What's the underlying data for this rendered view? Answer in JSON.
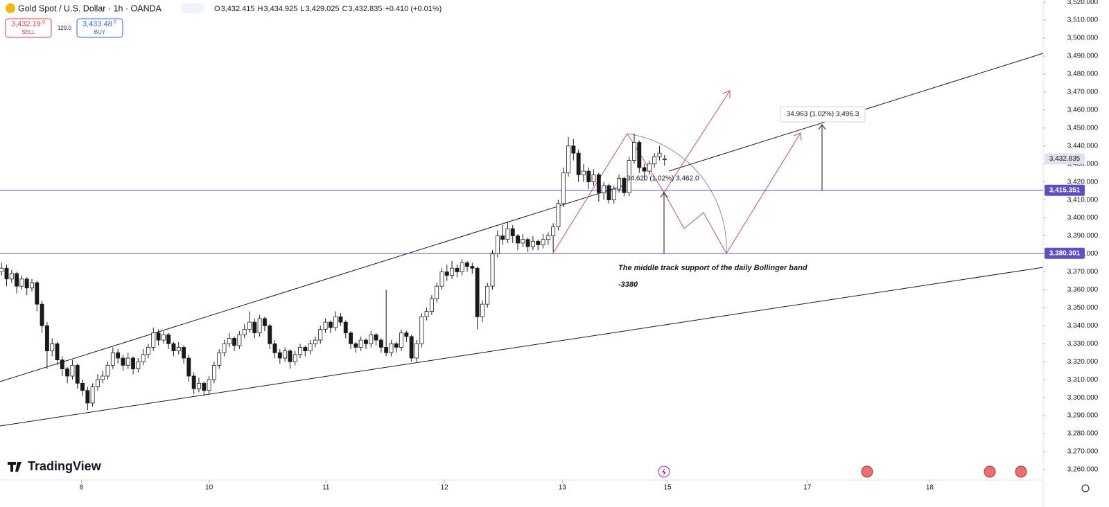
{
  "chart_data": {
    "type": "candlestick",
    "title": "Gold Spot / U.S. Dollar · 1h · OANDA",
    "ohlc_header": [
      {
        "label": "O",
        "value": "3,432.415"
      },
      {
        "label": "H",
        "value": "3,434.925"
      },
      {
        "label": "L",
        "value": "3,429.025"
      },
      {
        "label": "C",
        "value": "3,432.835"
      }
    ],
    "change": "+0.410 (+0.01%)",
    "sell": {
      "price": "3,432.19",
      "fraction": "0",
      "label": "SELL"
    },
    "spread": "129.0",
    "buy": {
      "price": "3,433.48",
      "fraction": "0",
      "label": "BUY"
    },
    "up_color": "#ffffff",
    "down_color": "#1a1a1a",
    "outline_color": "#1a1a1a",
    "xlim": [
      -0.3,
      205.8
    ],
    "xticks": [
      {
        "value": 15.8,
        "label": "8"
      },
      {
        "value": 41,
        "label": "10"
      },
      {
        "value": 64.1,
        "label": "11"
      },
      {
        "value": 87.5,
        "label": "12"
      },
      {
        "value": 110.8,
        "label": "13"
      },
      {
        "value": 131.6,
        "label": "15"
      },
      {
        "value": 159.2,
        "label": "17"
      },
      {
        "value": 183.4,
        "label": "18"
      }
    ],
    "ylim": [
      3254.2,
      3521.2
    ],
    "yticks": [
      {
        "value": 3520,
        "label": "3,520.000"
      },
      {
        "value": 3510,
        "label": "3,510.000"
      },
      {
        "value": 3500,
        "label": "3,500.000"
      },
      {
        "value": 3490,
        "label": "3,490.000"
      },
      {
        "value": 3480,
        "label": "3,480.000"
      },
      {
        "value": 3470,
        "label": "3,470.000"
      },
      {
        "value": 3460,
        "label": "3,460.000"
      },
      {
        "value": 3450,
        "label": "3,450.000"
      },
      {
        "value": 3440,
        "label": "3,440.000"
      },
      {
        "value": 3430,
        "label": "3,430.000"
      },
      {
        "value": 3420,
        "label": "3,420.000"
      },
      {
        "value": 3410,
        "label": "3,410.000"
      },
      {
        "value": 3400,
        "label": "3,400.000"
      },
      {
        "value": 3390,
        "label": "3,390.000"
      },
      {
        "value": 3380,
        "label": "3,380.000"
      },
      {
        "value": 3370,
        "label": "3,370.000"
      },
      {
        "value": 3360,
        "label": "3,360.000"
      },
      {
        "value": 3350,
        "label": "3,350.000"
      },
      {
        "value": 3340,
        "label": "3,340.000"
      },
      {
        "value": 3330,
        "label": "3,330.000"
      },
      {
        "value": 3320,
        "label": "3,320.000"
      },
      {
        "value": 3310,
        "label": "3,310.000"
      },
      {
        "value": 3300,
        "label": "3,300.000"
      },
      {
        "value": 3290,
        "label": "3,290.000"
      },
      {
        "value": 3280,
        "label": "3,280.000"
      },
      {
        "value": 3270,
        "label": "3,270.000"
      },
      {
        "value": 3260,
        "label": "3,260.000"
      }
    ],
    "current_price": {
      "value": 3432.835,
      "label": "3,432.835"
    },
    "price_lines": [
      {
        "value": 3415.351,
        "label": "3,415.351",
        "color": "#5b4fc7"
      },
      {
        "value": 3380.301,
        "label": "3,380.301",
        "color": "#5b4fc7"
      }
    ],
    "annotations": {
      "upper_measure": "34.963 (1.02%) 3,496.3",
      "lower_measure": "34.620 (1.02%) 3,462.0",
      "note": "The middle track support of the daily Bollinger band",
      "note_level": "-3380"
    },
    "brand": "TradingView",
    "candles": [
      [
        3370,
        3375,
        3368,
        3372
      ],
      [
        3372,
        3374,
        3362,
        3366
      ],
      [
        3366,
        3371,
        3364,
        3369
      ],
      [
        3369,
        3370,
        3358,
        3362
      ],
      [
        3362,
        3368,
        3360,
        3366
      ],
      [
        3366,
        3367,
        3357,
        3361
      ],
      [
        3361,
        3366,
        3359,
        3364
      ],
      [
        3364,
        3365,
        3348,
        3352
      ],
      [
        3352,
        3354,
        3336,
        3340
      ],
      [
        3340,
        3342,
        3316,
        3326
      ],
      [
        3326,
        3333,
        3323,
        3330
      ],
      [
        3330,
        3331,
        3318,
        3321
      ],
      [
        3321,
        3323,
        3312,
        3316
      ],
      [
        3316,
        3317,
        3308,
        3312
      ],
      [
        3312,
        3321,
        3310,
        3318
      ],
      [
        3318,
        3319,
        3305,
        3308
      ],
      [
        3308,
        3310,
        3301,
        3304
      ],
      [
        3304,
        3306,
        3293,
        3297
      ],
      [
        3297,
        3308,
        3295,
        3306
      ],
      [
        3306,
        3313,
        3304,
        3310
      ],
      [
        3310,
        3315,
        3308,
        3312
      ],
      [
        3312,
        3320,
        3310,
        3318
      ],
      [
        3318,
        3328,
        3316,
        3325
      ],
      [
        3325,
        3327,
        3319,
        3322
      ],
      [
        3322,
        3324,
        3315,
        3318
      ],
      [
        3318,
        3325,
        3316,
        3322
      ],
      [
        3322,
        3323,
        3313,
        3316
      ],
      [
        3316,
        3322,
        3314,
        3320
      ],
      [
        3320,
        3327,
        3318,
        3324
      ],
      [
        3324,
        3330,
        3322,
        3328
      ],
      [
        3328,
        3339,
        3326,
        3336
      ],
      [
        3336,
        3338,
        3329,
        3332
      ],
      [
        3332,
        3337,
        3330,
        3335
      ],
      [
        3335,
        3336,
        3327,
        3330
      ],
      [
        3330,
        3331,
        3323,
        3326
      ],
      [
        3326,
        3331,
        3324,
        3328
      ],
      [
        3328,
        3329,
        3319,
        3322
      ],
      [
        3322,
        3324,
        3309,
        3312
      ],
      [
        3312,
        3314,
        3302,
        3305
      ],
      [
        3305,
        3311,
        3303,
        3308
      ],
      [
        3308,
        3309,
        3301,
        3304
      ],
      [
        3304,
        3312,
        3302,
        3310
      ],
      [
        3310,
        3320,
        3308,
        3318
      ],
      [
        3318,
        3327,
        3316,
        3325
      ],
      [
        3325,
        3332,
        3323,
        3330
      ],
      [
        3330,
        3336,
        3328,
        3333
      ],
      [
        3333,
        3334,
        3326,
        3329
      ],
      [
        3329,
        3337,
        3327,
        3335
      ],
      [
        3335,
        3341,
        3333,
        3338
      ],
      [
        3338,
        3348,
        3336,
        3342
      ],
      [
        3342,
        3344,
        3333,
        3336
      ],
      [
        3336,
        3346,
        3334,
        3344
      ],
      [
        3344,
        3345,
        3337,
        3340
      ],
      [
        3340,
        3341,
        3327,
        3330
      ],
      [
        3330,
        3332,
        3322,
        3325
      ],
      [
        3325,
        3327,
        3319,
        3322
      ],
      [
        3322,
        3328,
        3320,
        3326
      ],
      [
        3326,
        3327,
        3316,
        3320
      ],
      [
        3320,
        3326,
        3318,
        3324
      ],
      [
        3324,
        3330,
        3322,
        3328
      ],
      [
        3328,
        3329,
        3323,
        3326
      ],
      [
        3326,
        3332,
        3324,
        3330
      ],
      [
        3330,
        3334,
        3328,
        3332
      ],
      [
        3332,
        3340,
        3330,
        3338
      ],
      [
        3338,
        3344,
        3336,
        3342
      ],
      [
        3342,
        3343,
        3336,
        3339
      ],
      [
        3339,
        3348,
        3337,
        3345
      ],
      [
        3345,
        3347,
        3340,
        3342
      ],
      [
        3342,
        3343,
        3333,
        3336
      ],
      [
        3336,
        3337,
        3327,
        3330
      ],
      [
        3330,
        3331,
        3325,
        3328
      ],
      [
        3328,
        3334,
        3326,
        3332
      ],
      [
        3332,
        3333,
        3327,
        3330
      ],
      [
        3330,
        3337,
        3328,
        3335
      ],
      [
        3335,
        3336,
        3329,
        3332
      ],
      [
        3332,
        3333,
        3325,
        3328
      ],
      [
        3328,
        3360,
        3323,
        3325
      ],
      [
        3325,
        3332,
        3323,
        3330
      ],
      [
        3330,
        3331,
        3325,
        3328
      ],
      [
        3328,
        3338,
        3326,
        3336
      ],
      [
        3336,
        3337,
        3331,
        3334
      ],
      [
        3334,
        3335,
        3320,
        3322
      ],
      [
        3322,
        3332,
        3320,
        3330
      ],
      [
        3330,
        3347,
        3328,
        3345
      ],
      [
        3345,
        3350,
        3343,
        3348
      ],
      [
        3348,
        3357,
        3346,
        3355
      ],
      [
        3355,
        3364,
        3353,
        3362
      ],
      [
        3362,
        3372,
        3360,
        3370
      ],
      [
        3370,
        3374,
        3365,
        3368
      ],
      [
        3368,
        3376,
        3366,
        3372
      ],
      [
        3372,
        3374,
        3367,
        3370
      ],
      [
        3370,
        3377,
        3368,
        3375
      ],
      [
        3375,
        3376,
        3370,
        3373
      ],
      [
        3373,
        3375,
        3369,
        3372
      ],
      [
        3372,
        3373,
        3338,
        3345
      ],
      [
        3345,
        3354,
        3342,
        3352
      ],
      [
        3352,
        3364,
        3350,
        3362
      ],
      [
        3362,
        3382,
        3360,
        3380
      ],
      [
        3380,
        3393,
        3378,
        3390
      ],
      [
        3390,
        3396,
        3385,
        3388
      ],
      [
        3388,
        3398,
        3386,
        3394
      ],
      [
        3394,
        3396,
        3386,
        3390
      ],
      [
        3390,
        3391,
        3382,
        3386
      ],
      [
        3386,
        3391,
        3384,
        3388
      ],
      [
        3388,
        3389,
        3381,
        3384
      ],
      [
        3384,
        3390,
        3382,
        3387
      ],
      [
        3387,
        3388,
        3382,
        3385
      ],
      [
        3385,
        3391,
        3383,
        3388
      ],
      [
        3388,
        3392,
        3385,
        3390
      ],
      [
        3390,
        3397,
        3381,
        3395
      ],
      [
        3395,
        3410,
        3393,
        3408
      ],
      [
        3408,
        3428,
        3406,
        3425
      ],
      [
        3425,
        3445,
        3423,
        3440
      ],
      [
        3440,
        3444,
        3432,
        3436
      ],
      [
        3436,
        3438,
        3420,
        3424
      ],
      [
        3424,
        3430,
        3420,
        3426
      ],
      [
        3426,
        3428,
        3416,
        3420
      ],
      [
        3420,
        3427,
        3418,
        3424
      ],
      [
        3424,
        3425,
        3409,
        3414
      ],
      [
        3414,
        3420,
        3410,
        3418
      ],
      [
        3418,
        3419,
        3408,
        3410
      ],
      [
        3410,
        3418,
        3408,
        3416
      ],
      [
        3416,
        3424,
        3414,
        3422
      ],
      [
        3422,
        3423,
        3412,
        3414
      ],
      [
        3414,
        3434,
        3412,
        3432
      ],
      [
        3432,
        3447,
        3430,
        3442
      ],
      [
        3442,
        3443,
        3425,
        3428
      ],
      [
        3428,
        3430,
        3421,
        3426
      ],
      [
        3426,
        3432,
        3424,
        3430
      ],
      [
        3430,
        3436,
        3428,
        3434
      ],
      [
        3434,
        3440,
        3432,
        3436
      ],
      [
        3432.415,
        3434.925,
        3429.025,
        3432.835
      ]
    ]
  }
}
